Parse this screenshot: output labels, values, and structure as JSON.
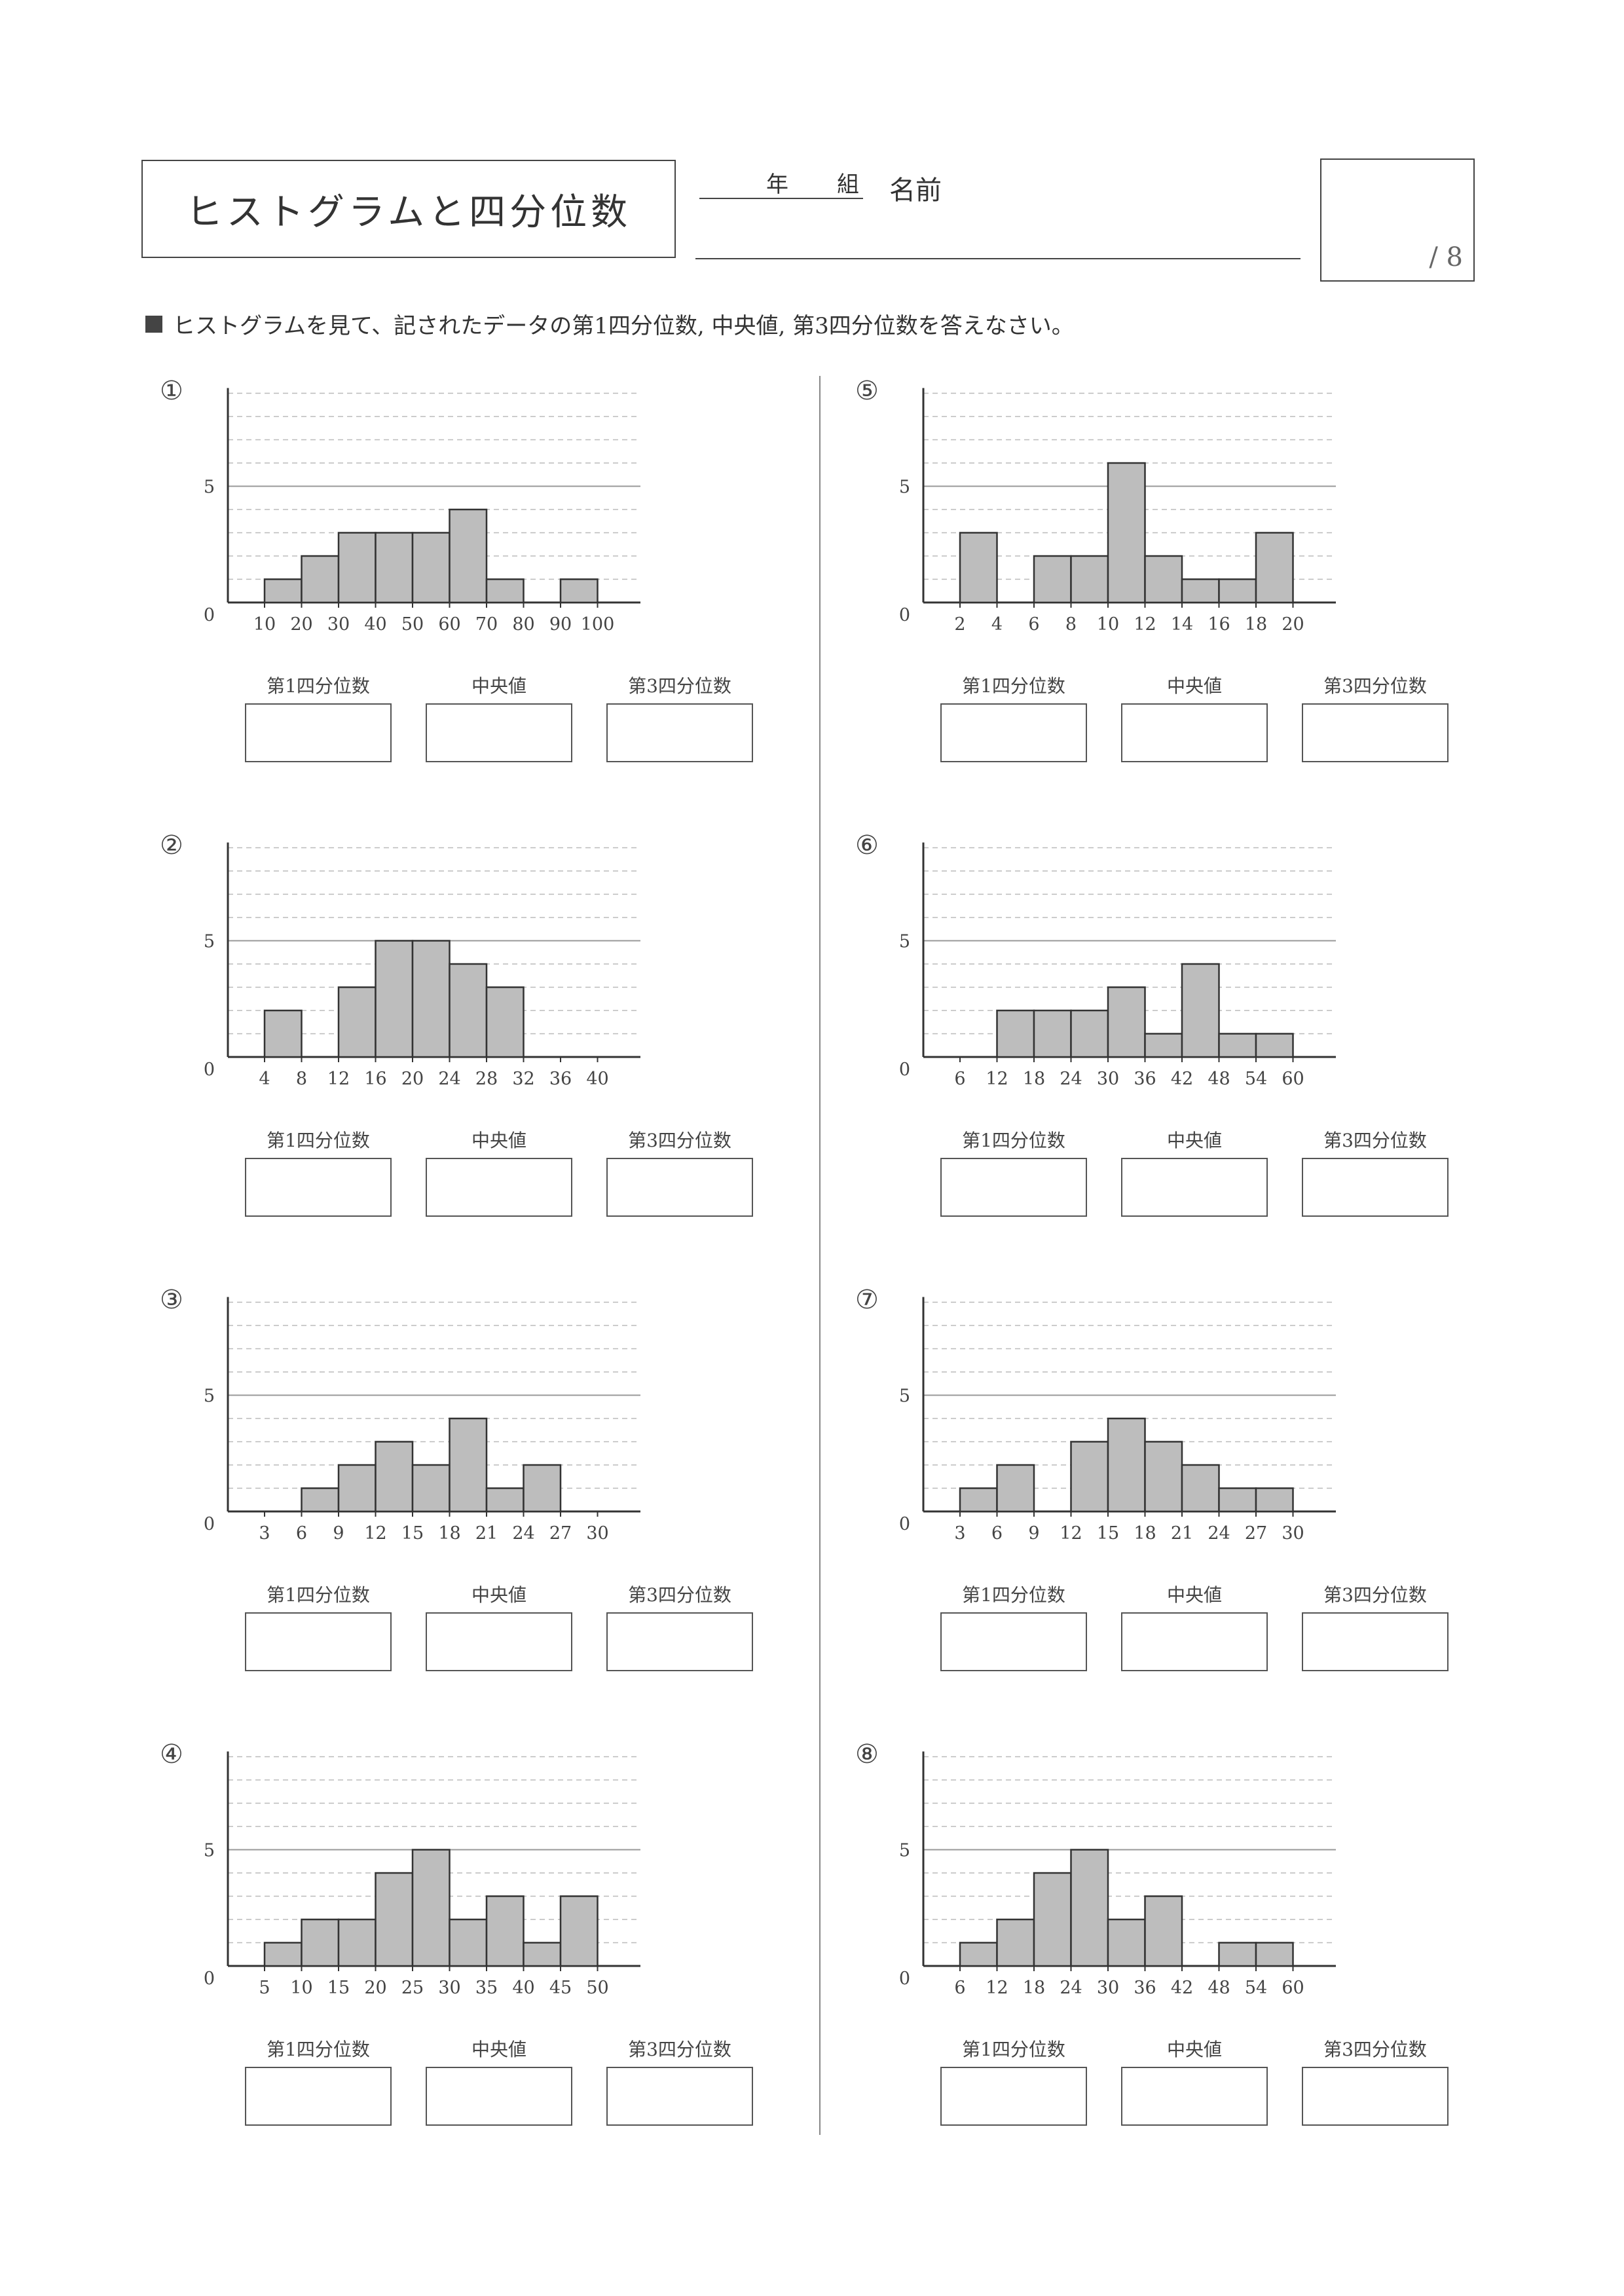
{
  "header": {
    "title": "ヒストグラムと四分位数",
    "nen": "年",
    "kumi": "組",
    "name_label": "名前",
    "score": "/ 8"
  },
  "instruction": "ヒストグラムを見て、記されたデータの第1四分位数, 中央値, 第3四分位数を答えなさい。",
  "answer_labels": [
    "第1四分位数",
    "中央値",
    "第3四分位数"
  ],
  "problems": [
    {
      "num": "①"
    },
    {
      "num": "②"
    },
    {
      "num": "③"
    },
    {
      "num": "④"
    },
    {
      "num": "⑤"
    },
    {
      "num": "⑥"
    },
    {
      "num": "⑦"
    },
    {
      "num": "⑧"
    }
  ],
  "chart_data": [
    {
      "type": "bar",
      "title": "",
      "xticks": [
        "10",
        "20",
        "30",
        "40",
        "50",
        "60",
        "70",
        "80",
        "90",
        "100"
      ],
      "values": [
        1,
        2,
        3,
        3,
        3,
        4,
        1,
        0,
        1
      ],
      "ylim": [
        0,
        9
      ],
      "ytick_labels": [
        "0",
        "5"
      ],
      "grid": true
    },
    {
      "type": "bar",
      "title": "",
      "xticks": [
        "4",
        "8",
        "12",
        "16",
        "20",
        "24",
        "28",
        "32",
        "36",
        "40"
      ],
      "values": [
        2,
        0,
        3,
        5,
        5,
        4,
        3,
        0,
        0
      ],
      "ylim": [
        0,
        9
      ],
      "ytick_labels": [
        "0",
        "5"
      ],
      "grid": true
    },
    {
      "type": "bar",
      "title": "",
      "xticks": [
        "3",
        "6",
        "9",
        "12",
        "15",
        "18",
        "21",
        "24",
        "27",
        "30"
      ],
      "values": [
        0,
        1,
        2,
        3,
        2,
        4,
        1,
        2,
        0
      ],
      "ylim": [
        0,
        9
      ],
      "ytick_labels": [
        "0",
        "5"
      ],
      "grid": true
    },
    {
      "type": "bar",
      "title": "",
      "xticks": [
        "5",
        "10",
        "15",
        "20",
        "25",
        "30",
        "35",
        "40",
        "45",
        "50"
      ],
      "values": [
        1,
        2,
        2,
        4,
        5,
        2,
        3,
        1,
        3
      ],
      "ylim": [
        0,
        9
      ],
      "ytick_labels": [
        "0",
        "5"
      ],
      "grid": true
    },
    {
      "type": "bar",
      "title": "",
      "xticks": [
        "2",
        "4",
        "6",
        "8",
        "10",
        "12",
        "14",
        "16",
        "18",
        "20"
      ],
      "values": [
        3,
        0,
        2,
        2,
        6,
        2,
        1,
        1,
        3
      ],
      "ylim": [
        0,
        9
      ],
      "ytick_labels": [
        "0",
        "5"
      ],
      "grid": true
    },
    {
      "type": "bar",
      "title": "",
      "xticks": [
        "6",
        "12",
        "18",
        "24",
        "30",
        "36",
        "42",
        "48",
        "54",
        "60"
      ],
      "values": [
        0,
        2,
        2,
        2,
        3,
        1,
        4,
        1,
        1
      ],
      "ylim": [
        0,
        9
      ],
      "ytick_labels": [
        "0",
        "5"
      ],
      "grid": true
    },
    {
      "type": "bar",
      "title": "",
      "xticks": [
        "3",
        "6",
        "9",
        "12",
        "15",
        "18",
        "21",
        "24",
        "27",
        "30"
      ],
      "values": [
        1,
        2,
        0,
        3,
        4,
        3,
        2,
        1,
        1
      ],
      "ylim": [
        0,
        9
      ],
      "ytick_labels": [
        "0",
        "5"
      ],
      "grid": true
    },
    {
      "type": "bar",
      "title": "",
      "xticks": [
        "6",
        "12",
        "18",
        "24",
        "30",
        "36",
        "42",
        "48",
        "54",
        "60"
      ],
      "values": [
        1,
        2,
        4,
        5,
        2,
        3,
        0,
        1,
        1
      ],
      "ylim": [
        0,
        9
      ],
      "ytick_labels": [
        "0",
        "5"
      ],
      "grid": true
    }
  ]
}
